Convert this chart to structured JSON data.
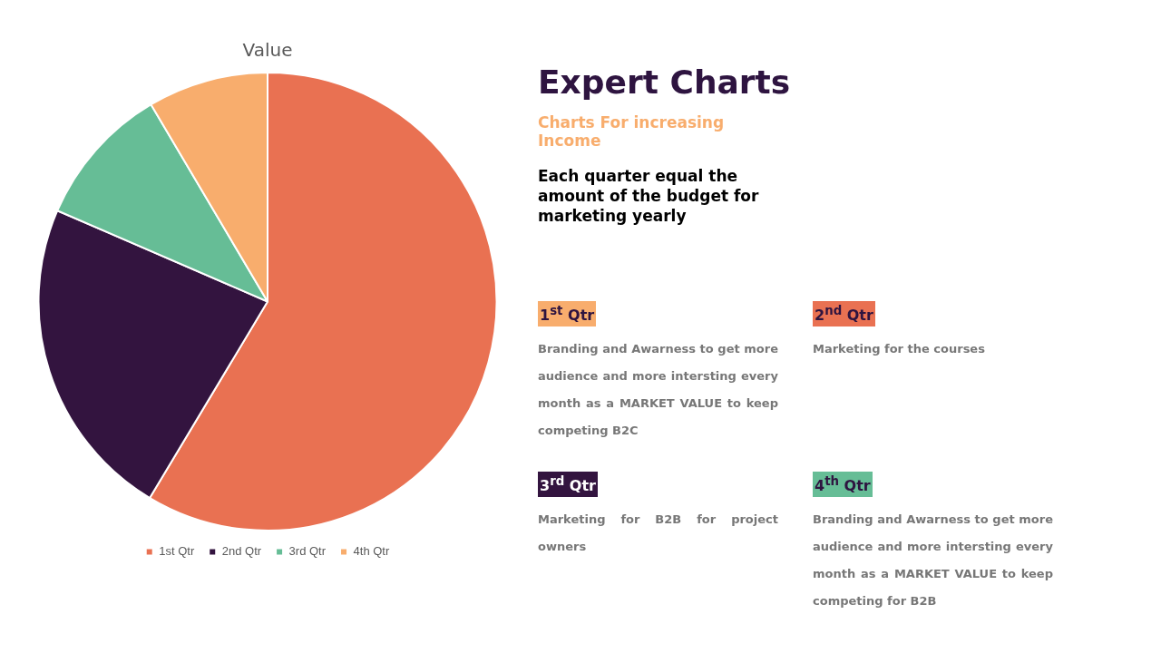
{
  "chart_data": {
    "type": "pie",
    "title": "Value",
    "categories": [
      "1st Qtr",
      "2nd Qtr",
      "3rd Qtr",
      "4th Qtr"
    ],
    "values": [
      58.6,
      22.9,
      10.0,
      8.5
    ],
    "colors": [
      "#e97152",
      "#33143f",
      "#66bd96",
      "#f8ad6d"
    ],
    "legend": "bottom",
    "annotations": [
      "Expert Charts",
      "Charts For increasing Income",
      "Each quarter equal the amount of the budget for marketing yearly",
      "1$^{st}$ Qtr",
      "Branding and Awarness to get more audience and more intersting every month as a MARKET VALUE to keep competing B2C",
      "2$^{nd}$ Qtr",
      "Marketing for the courses",
      "3$^{rd}$ Qtr",
      "Marketing for B2B for project owners",
      "4$^{th}$ Qtr",
      "Branding and Awarness to get more audience and more intersting every month as a MARKET VALUE to keep competing for B2B"
    ]
  }
}
